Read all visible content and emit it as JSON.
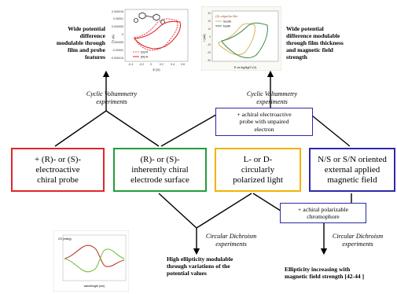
{
  "colors": {
    "red": "#e0262b",
    "green": "#1f9e3a",
    "yellow": "#f0b400",
    "blue": "#2b2ba6",
    "cv_gold": "#d8b25a",
    "cv_green": "#3c8a3c",
    "cd_red": "#c0392b",
    "cd_green": "#7cc243"
  },
  "boxes": [
    {
      "lines": [
        "+ (R)- or (S)-",
        "electroactive",
        "chiral probe"
      ],
      "color": "red"
    },
    {
      "lines": [
        "(R)- or (S)-",
        "inherently chiral",
        "electrode surface"
      ],
      "color": "green"
    },
    {
      "lines": [
        "L- or D-",
        "circularly",
        "polarized light"
      ],
      "color": "yellow"
    },
    {
      "lines": [
        "N/S or S/N oriented",
        "external applied",
        "magnetic field"
      ],
      "color": "blue"
    }
  ],
  "probe_box": [
    "+ achiral electroactive",
    "probe with unpaired",
    "electron"
  ],
  "chromophore_box": [
    "+ achiral polarizable",
    "chromophore"
  ],
  "labels": {
    "cv_left": [
      "Cyclic Voltammetry",
      "experiments"
    ],
    "cv_right": [
      "Cyclic Voltammetry",
      "experiments"
    ],
    "cd_left": [
      "Circular Dichroism",
      "experiments"
    ],
    "cd_right": [
      "Circular Dichroism",
      "experiments"
    ]
  },
  "notes": {
    "top_left": [
      "Wide potential",
      "difference",
      "modulable through",
      "film and probe",
      "features"
    ],
    "top_right": [
      "Wide potential",
      "difference modulable",
      "through film thickness",
      "and magnetic field",
      "strength"
    ],
    "bottom_left": [
      "High ellipticity modulable",
      "through variations of the",
      "potential values"
    ],
    "bottom_right": [
      "Ellipticity increasing with",
      "magnetic field strength [42-44 ]"
    ]
  },
  "cv_left_chart": {
    "y_ticks": [
      "0.000015",
      "0.00001",
      "0.000005",
      "0",
      "-0.000005",
      "-0.00001",
      "-0.000015"
    ],
    "x_ticks": [
      "-0.4",
      "-0.2",
      "0",
      "0.2",
      "0.4",
      "0.6"
    ],
    "ylabel": "I (A)",
    "xlabel": "E (V)",
    "legend": [
      "(S)-R",
      "(R)-R"
    ]
  },
  "cv_right_chart": {
    "legend_title": "(S)-oligo/Au film",
    "legend": [
      "South",
      "North"
    ],
    "y_ticks": [
      "30",
      "20",
      "10",
      "0",
      "-10",
      "-20",
      "-30"
    ],
    "ylabel": "I (uA)",
    "xlabel": "E vs Ag/AgCl (V)"
  },
  "cd_chart": {
    "ylabel": "CD (mdeg)",
    "xlabel": "wavelength (nm)"
  }
}
